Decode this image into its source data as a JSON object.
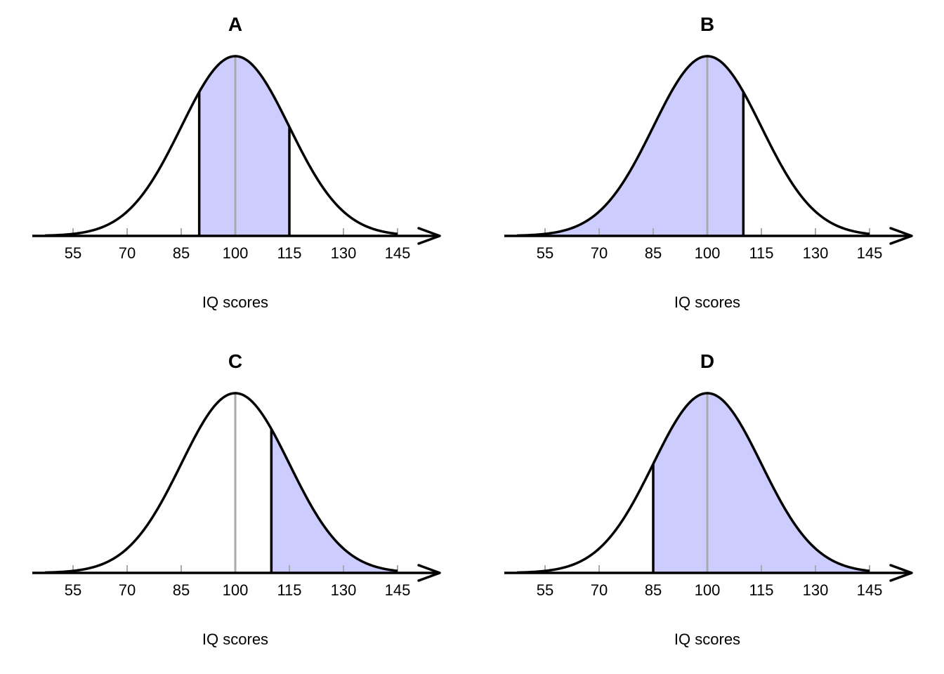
{
  "colors": {
    "shade": "#ccccff",
    "curve": "#000000",
    "mean_line": "#aaaaaa",
    "tick": "#aaaaaa"
  },
  "chart_data": [
    {
      "type": "area",
      "title": "A",
      "xlabel": "IQ scores",
      "distribution": "normal",
      "mean": 100,
      "sd": 15,
      "xlim": [
        40,
        160
      ],
      "ticks": [
        55,
        70,
        85,
        100,
        115,
        130,
        145
      ],
      "tick_labels": [
        "55",
        "70",
        "85",
        "100",
        "115",
        "130",
        "145"
      ],
      "shade_from": 90,
      "shade_to": 115
    },
    {
      "type": "area",
      "title": "B",
      "xlabel": "IQ scores",
      "distribution": "normal",
      "mean": 100,
      "sd": 15,
      "xlim": [
        40,
        160
      ],
      "ticks": [
        55,
        70,
        85,
        100,
        115,
        130,
        145
      ],
      "tick_labels": [
        "55",
        "70",
        "85",
        "100",
        "115",
        "130",
        "145"
      ],
      "shade_from": null,
      "shade_to": 110
    },
    {
      "type": "area",
      "title": "C",
      "xlabel": "IQ scores",
      "distribution": "normal",
      "mean": 100,
      "sd": 15,
      "xlim": [
        40,
        160
      ],
      "ticks": [
        55,
        70,
        85,
        100,
        115,
        130,
        145
      ],
      "tick_labels": [
        "55",
        "70",
        "85",
        "100",
        "115",
        "130",
        "145"
      ],
      "shade_from": 110,
      "shade_to": null
    },
    {
      "type": "area",
      "title": "D",
      "xlabel": "IQ scores",
      "distribution": "normal",
      "mean": 100,
      "sd": 15,
      "xlim": [
        40,
        160
      ],
      "ticks": [
        55,
        70,
        85,
        100,
        115,
        130,
        145
      ],
      "tick_labels": [
        "55",
        "70",
        "85",
        "100",
        "115",
        "130",
        "145"
      ],
      "shade_from": 85,
      "shade_to": null
    }
  ]
}
